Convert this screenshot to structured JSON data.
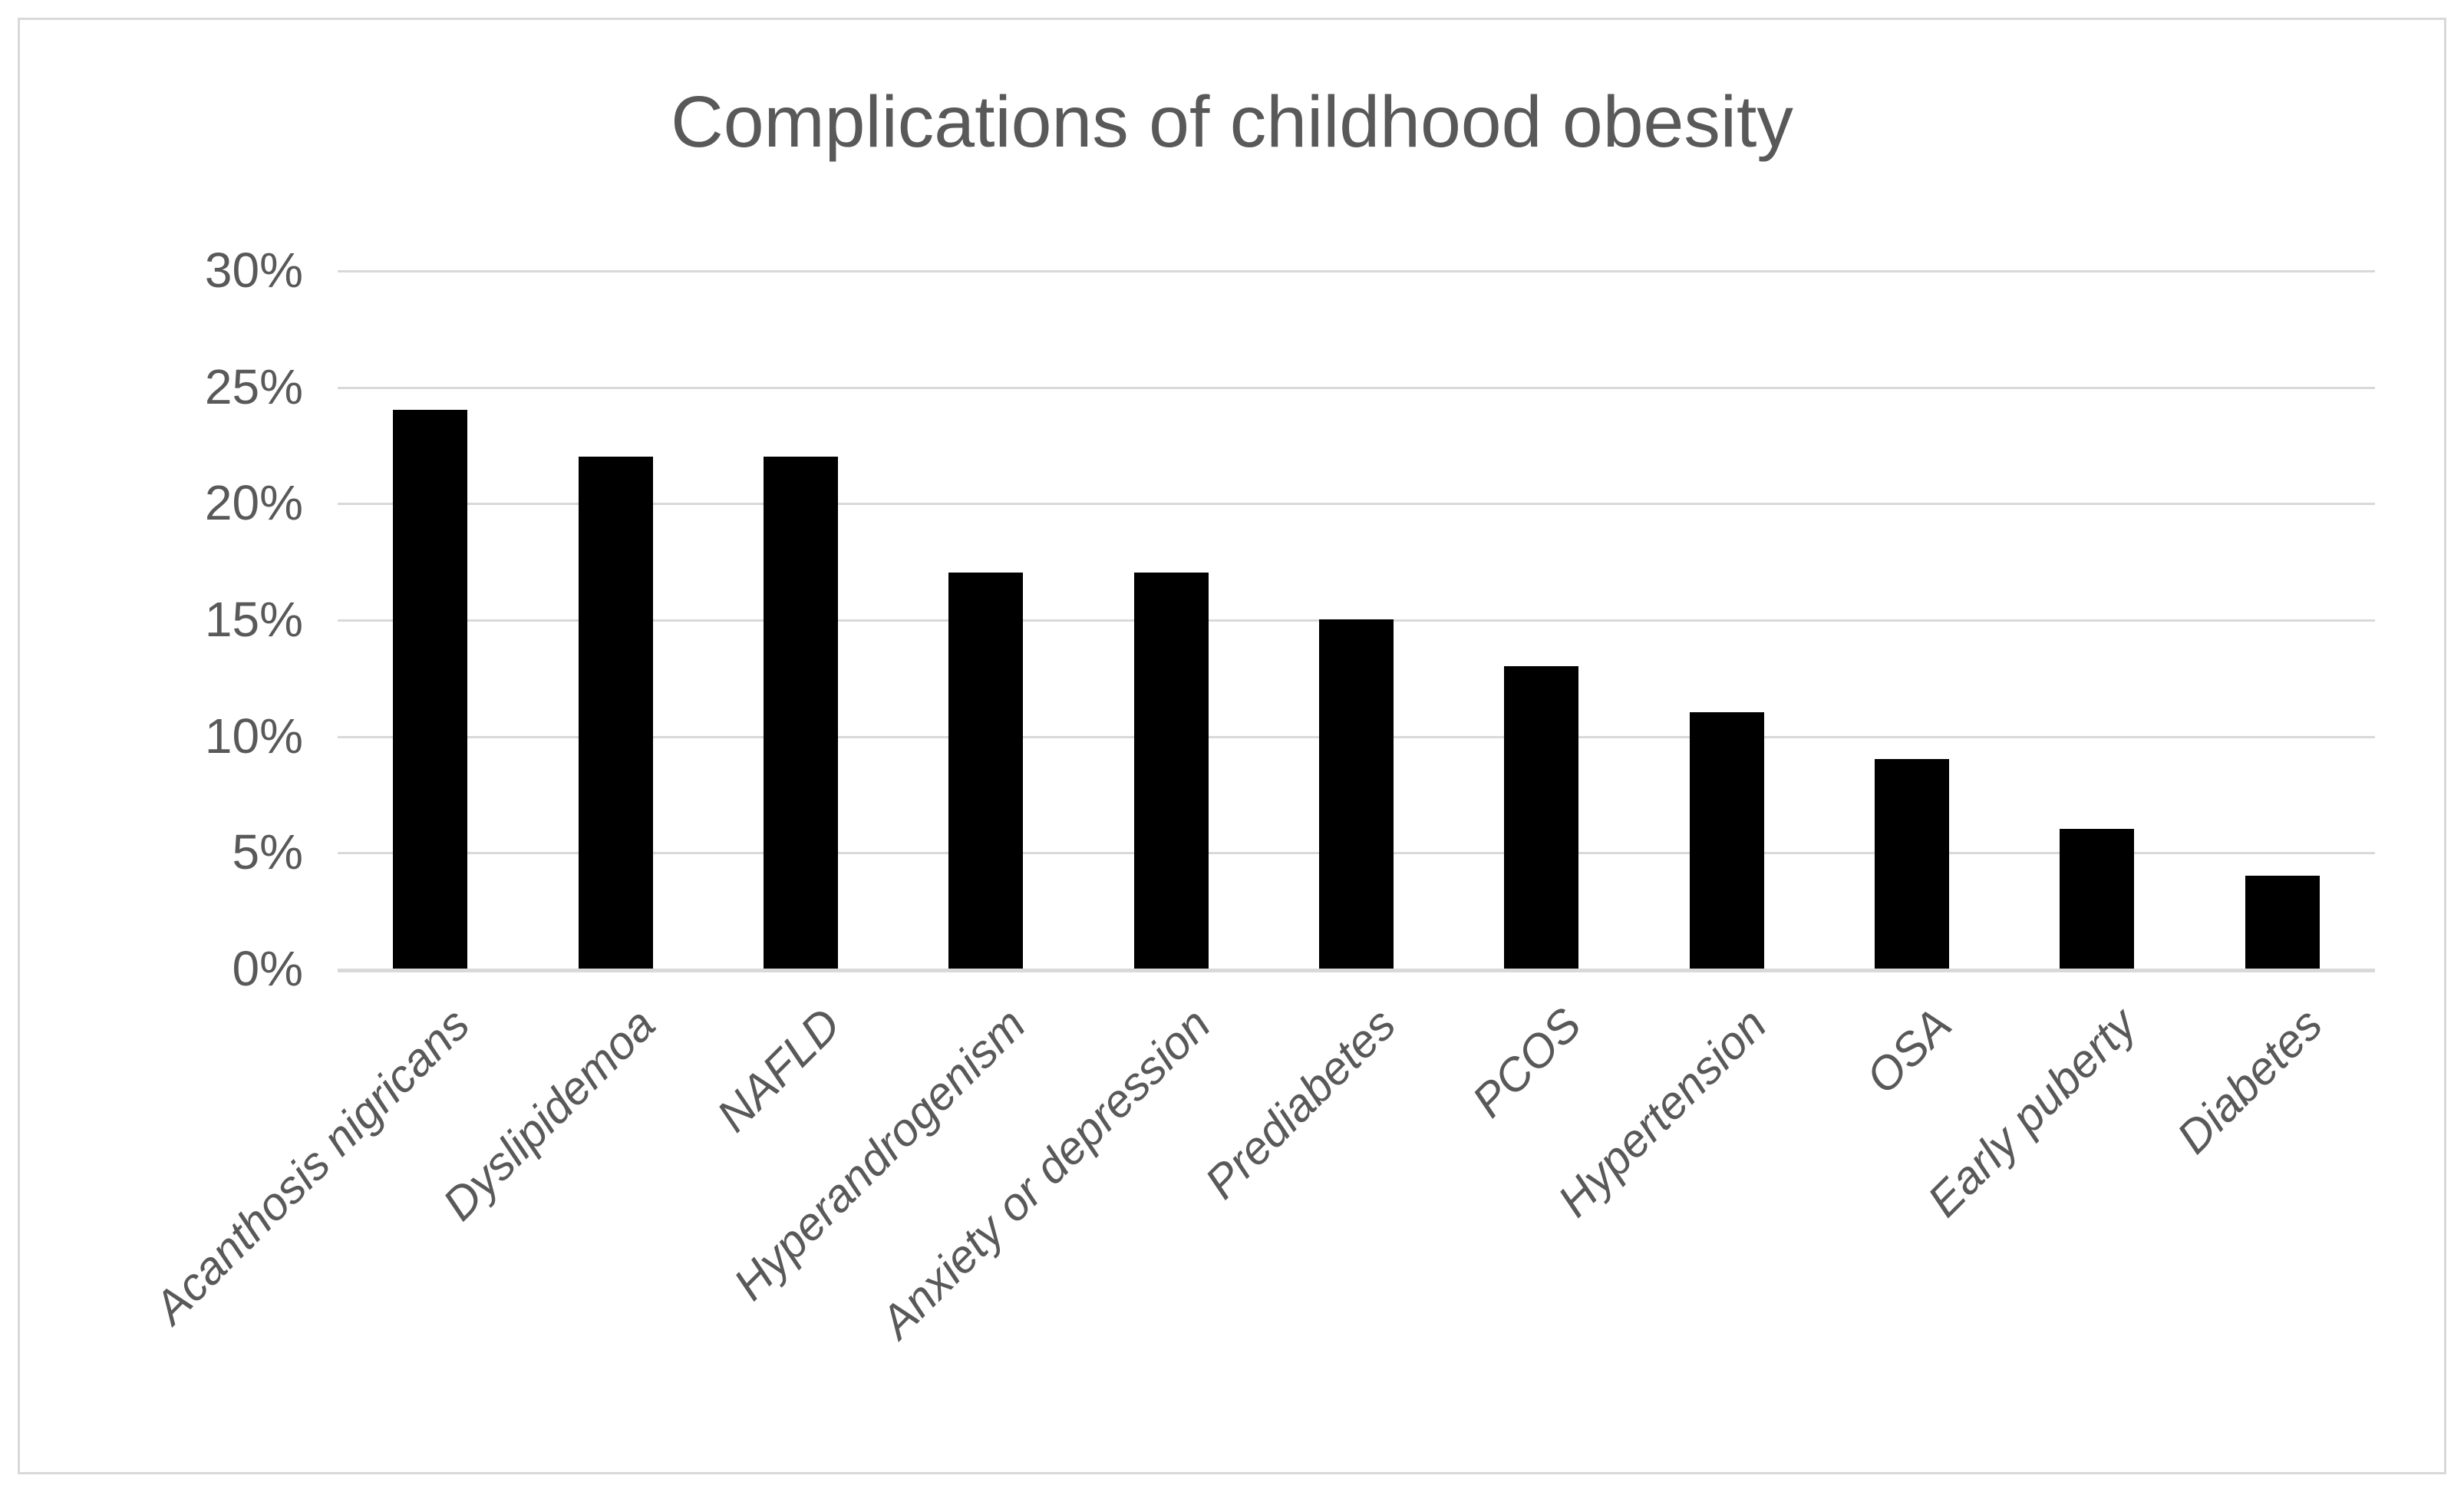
{
  "chart": {
    "title": "Complications of childhood obesity"
  },
  "chart_data": {
    "type": "bar",
    "title": "Complications of childhood obesity",
    "categories": [
      "Acanthosis nigricans",
      "Dyslipidemoa",
      "NAFLD",
      "Hyperandrogenism",
      "Anxiety or depression",
      "Prediabetes",
      "PCOS",
      "Hypertension",
      "OSA",
      "Early puberty",
      "Diabetes"
    ],
    "values": [
      24,
      22,
      22,
      17,
      17,
      15,
      13,
      11,
      9,
      6,
      4
    ],
    "unit": "%",
    "xlabel": "",
    "ylabel": "",
    "ylim": [
      0,
      30
    ],
    "ytick_step": 5,
    "ytick_labels": [
      "0%",
      "5%",
      "10%",
      "15%",
      "20%",
      "25%",
      "30%"
    ],
    "grid": true,
    "legend": false,
    "bar_color": "#000000",
    "colors": {
      "text": "#595959",
      "gridline": "#d9d9d9",
      "frame_border": "#d9d9d9",
      "background": "#ffffff"
    }
  }
}
